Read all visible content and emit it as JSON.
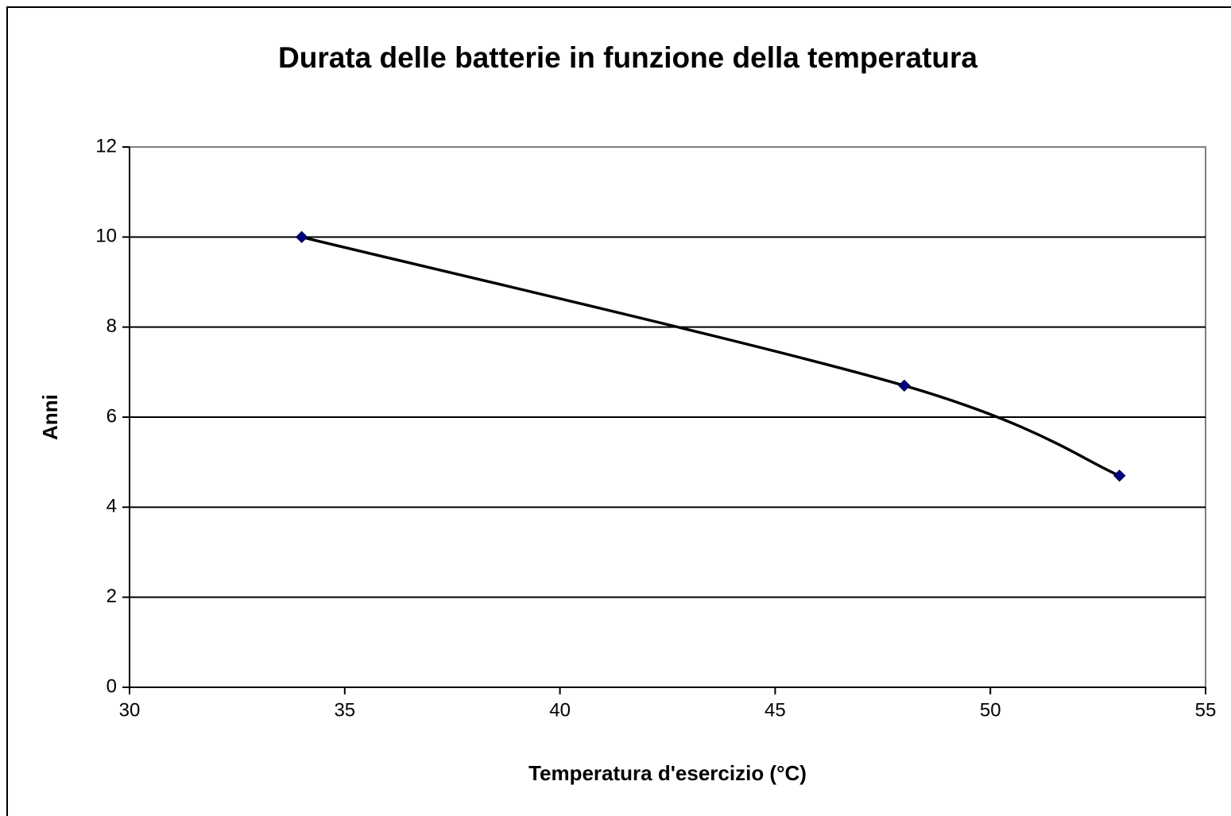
{
  "chart_data": {
    "type": "scatter",
    "smooth_line": true,
    "title": "Durata delle batterie in funzione della temperatura",
    "xlabel": "Temperatura d'esercizio (°C)",
    "ylabel": "Anni",
    "x": [
      34,
      48,
      53
    ],
    "series": [
      {
        "color": "#000080",
        "line_color": "#000000",
        "values": [
          10,
          6.7,
          4.7
        ]
      }
    ],
    "xlim": [
      30,
      55
    ],
    "xticks": [
      30,
      35,
      40,
      45,
      50,
      55
    ],
    "ylim": [
      0,
      12
    ],
    "yticks": [
      0,
      2,
      4,
      6,
      8,
      10,
      12
    ],
    "grid": true
  }
}
